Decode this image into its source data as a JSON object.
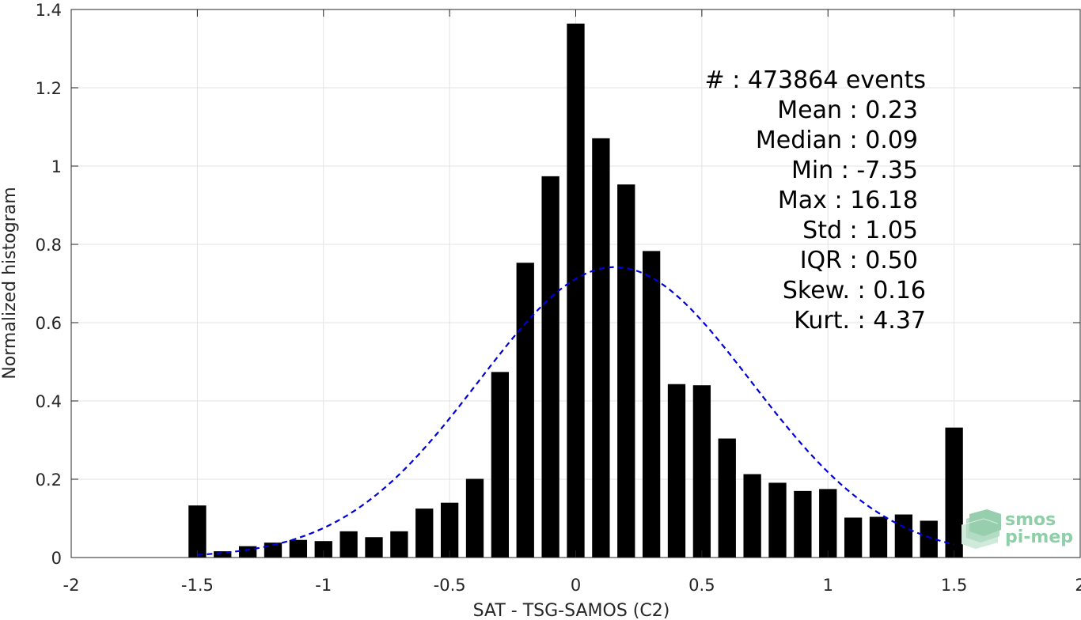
{
  "chart_data": {
    "type": "bar",
    "xlabel": "SAT - TSG-SAMOS (C2)",
    "ylabel": "Normalized histogram",
    "xlim": [
      -2,
      2
    ],
    "ylim": [
      0,
      1.4
    ],
    "xticks": [
      -2,
      -1.5,
      -1,
      -0.5,
      0,
      0.5,
      1,
      1.5,
      2
    ],
    "xtick_labels": [
      "-2",
      "-1.5",
      "-1",
      "-0.5",
      "0",
      "0.5",
      "1",
      "1.5",
      "2"
    ],
    "yticks": [
      0,
      0.2,
      0.4,
      0.6,
      0.8,
      1.0,
      1.2,
      1.4
    ],
    "ytick_labels": [
      "0",
      "0.2",
      "0.4",
      "0.6",
      "0.8",
      "1",
      "1.2",
      "1.4"
    ],
    "grid": true,
    "bar_width": 0.07,
    "bars": {
      "x": [
        -1.5,
        -1.4,
        -1.3,
        -1.2,
        -1.1,
        -1.0,
        -0.9,
        -0.8,
        -0.7,
        -0.6,
        -0.5,
        -0.4,
        -0.3,
        -0.2,
        -0.1,
        0.0,
        0.1,
        0.2,
        0.3,
        0.4,
        0.5,
        0.6,
        0.7,
        0.8,
        0.9,
        1.0,
        1.1,
        1.2,
        1.3,
        1.4,
        1.5
      ],
      "values": [
        0.133,
        0.016,
        0.029,
        0.038,
        0.045,
        0.042,
        0.067,
        0.052,
        0.067,
        0.125,
        0.14,
        0.201,
        0.474,
        0.753,
        0.974,
        1.364,
        1.071,
        0.953,
        0.783,
        0.443,
        0.44,
        0.304,
        0.213,
        0.191,
        0.17,
        0.175,
        0.102,
        0.104,
        0.11,
        0.094,
        0.332
      ],
      "color": "#000000"
    },
    "fit": {
      "type": "gaussian",
      "style": "dashed",
      "color": "#0000dd",
      "x_range": [
        -1.5,
        1.5
      ]
    },
    "stats": [
      {
        "label": "#  : 473864 events"
      },
      {
        "label": "Mean : 0.23"
      },
      {
        "label": "Median : 0.09"
      },
      {
        "label": "Min : -7.35"
      },
      {
        "label": "Max : 16.18"
      },
      {
        "label": "Std : 1.05"
      },
      {
        "label": "IQR : 0.50"
      },
      {
        "label": "Skew. : 0.16"
      },
      {
        "label": "Kurt. : 4.37"
      }
    ]
  },
  "logo": {
    "line1": "smos",
    "line2": "pi-mep",
    "color": "#8fcfa8"
  }
}
